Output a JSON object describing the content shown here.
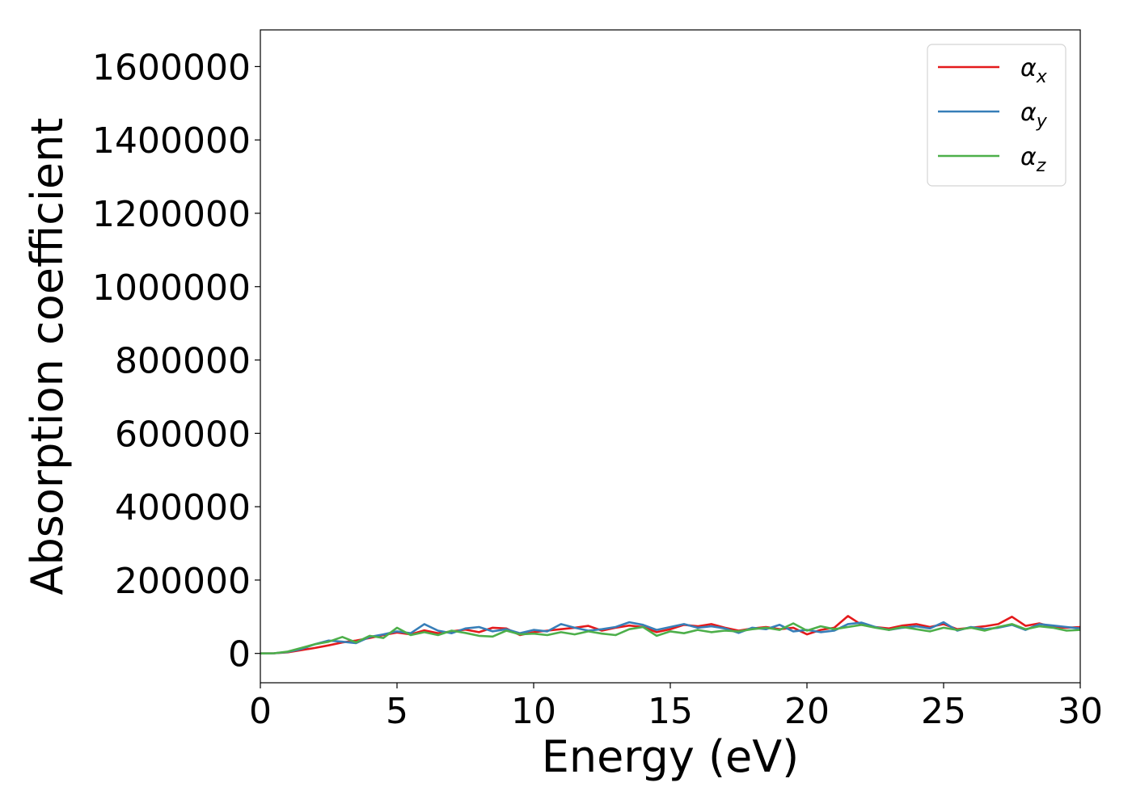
{
  "chart_data": {
    "type": "line",
    "title": "",
    "xlabel": "Energy (eV)",
    "ylabel": "Absorption coefficient",
    "xlim": [
      0,
      30
    ],
    "ylim": [
      -80000,
      1700000
    ],
    "xticks": [
      0,
      5,
      10,
      15,
      20,
      25,
      30
    ],
    "xtick_labels": [
      "0",
      "5",
      "10",
      "15",
      "20",
      "25",
      "30"
    ],
    "yticks": [
      0,
      200000,
      400000,
      600000,
      800000,
      1000000,
      1200000,
      1400000,
      1600000
    ],
    "ytick_labels": [
      "0",
      "200000",
      "400000",
      "600000",
      "800000",
      "1000000",
      "1200000",
      "1400000",
      "1600000"
    ],
    "grid": false,
    "legend_position": "top-right",
    "x": [
      0,
      0.5,
      1,
      1.5,
      2,
      2.5,
      3,
      3.5,
      4,
      4.5,
      5,
      5.5,
      6,
      6.5,
      7,
      7.5,
      8,
      8.5,
      9,
      9.5,
      10,
      10.5,
      11,
      11.5,
      12,
      12.5,
      13,
      13.5,
      14,
      14.5,
      15,
      15.5,
      16,
      16.5,
      17,
      17.5,
      18,
      18.5,
      19,
      19.5,
      20,
      20.5,
      21,
      21.5,
      22,
      22.5,
      23,
      23.5,
      24,
      24.5,
      25,
      25.5,
      26,
      26.5,
      27,
      27.5,
      28,
      28.5,
      29,
      29.5,
      30
    ],
    "series": [
      {
        "name_base": "α",
        "name_sub": "x",
        "color": "#e41a1c",
        "values": [
          0,
          500,
          3000,
          9000,
          15000,
          22000,
          30000,
          35000,
          42000,
          50000,
          57000,
          52000,
          63000,
          55000,
          60000,
          65000,
          58000,
          70000,
          68000,
          50000,
          58000,
          62000,
          66000,
          70000,
          75000,
          62000,
          70000,
          76000,
          72000,
          58000,
          66000,
          78000,
          74000,
          80000,
          70000,
          62000,
          68000,
          72000,
          66000,
          70000,
          52000,
          64000,
          70000,
          102000,
          78000,
          72000,
          68000,
          76000,
          80000,
          72000,
          80000,
          66000,
          70000,
          74000,
          80000,
          100000,
          75000,
          82000,
          72000,
          70000,
          72000
        ]
      },
      {
        "name_base": "α",
        "name_sub": "y",
        "color": "#377eb8",
        "values": [
          0,
          500,
          4000,
          12000,
          25000,
          35000,
          32000,
          28000,
          45000,
          52000,
          60000,
          55000,
          80000,
          62000,
          55000,
          68000,
          72000,
          60000,
          66000,
          55000,
          64000,
          60000,
          80000,
          70000,
          62000,
          66000,
          72000,
          85000,
          78000,
          64000,
          72000,
          80000,
          70000,
          74000,
          68000,
          56000,
          70000,
          66000,
          78000,
          60000,
          64000,
          58000,
          62000,
          80000,
          84000,
          72000,
          64000,
          70000,
          74000,
          68000,
          85000,
          62000,
          72000,
          66000,
          70000,
          78000,
          64000,
          80000,
          76000,
          72000,
          68000
        ]
      },
      {
        "name_base": "α",
        "name_sub": "z",
        "color": "#4daf4a",
        "values": [
          0,
          500,
          5000,
          15000,
          25000,
          32000,
          45000,
          30000,
          48000,
          42000,
          70000,
          50000,
          58000,
          50000,
          62000,
          56000,
          48000,
          46000,
          62000,
          52000,
          54000,
          50000,
          58000,
          52000,
          60000,
          54000,
          50000,
          66000,
          72000,
          48000,
          60000,
          55000,
          64000,
          58000,
          62000,
          60000,
          66000,
          70000,
          64000,
          82000,
          62000,
          74000,
          66000,
          72000,
          78000,
          70000,
          64000,
          72000,
          66000,
          60000,
          70000,
          64000,
          70000,
          62000,
          72000,
          80000,
          66000,
          74000,
          70000,
          62000,
          64000
        ]
      }
    ]
  }
}
